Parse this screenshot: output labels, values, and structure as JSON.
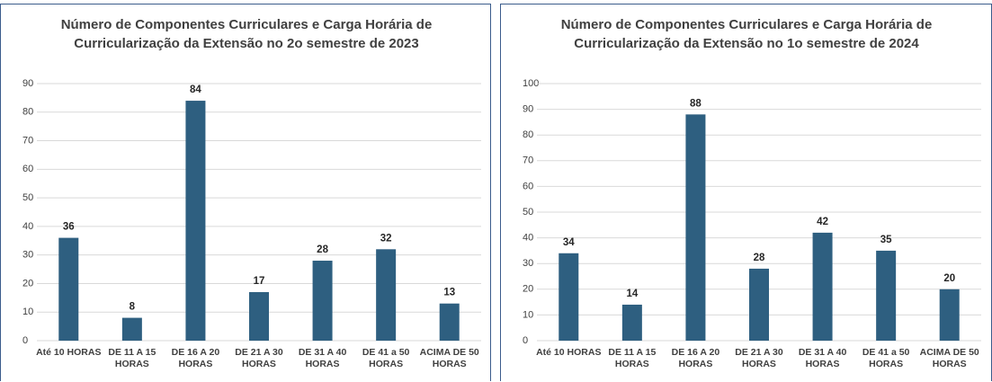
{
  "chart_data": [
    {
      "type": "bar",
      "title": "Número de Componentes Curriculares e Carga Horária de Curricularização da Extensão no 2o semestre de 2023",
      "categories": [
        "Até 10 HORAS",
        "DE 11 A 15 HORAS",
        "DE 16 A 20 HORAS",
        "DE 21 A 30 HORAS",
        "DE 31 A 40 HORAS",
        "DE 41 a 50 HORAS",
        "ACIMA DE 50 HORAS"
      ],
      "values": [
        36,
        8,
        84,
        17,
        28,
        32,
        13
      ],
      "color": "#2e5f80",
      "ylim": [
        0,
        90
      ],
      "yticks": [
        0,
        10,
        20,
        30,
        40,
        50,
        60,
        70,
        80,
        90
      ],
      "grid": true
    },
    {
      "type": "bar",
      "title": "Número de Componentes Curriculares e Carga Horária de Curricularização da Extensão no 1o semestre de 2024",
      "categories": [
        "Até 10 HORAS",
        "DE 11 A 15 HORAS",
        "DE 16 A 20 HORAS",
        "DE 21 A 30 HORAS",
        "DE 31 A 40 HORAS",
        "DE 41 a 50 HORAS",
        "ACIMA DE 50 HORAS"
      ],
      "values": [
        34,
        14,
        88,
        28,
        42,
        35,
        20
      ],
      "color": "#2e5f80",
      "ylim": [
        0,
        100
      ],
      "yticks": [
        0,
        10,
        20,
        30,
        40,
        50,
        60,
        70,
        80,
        90,
        100
      ],
      "grid": true
    }
  ]
}
